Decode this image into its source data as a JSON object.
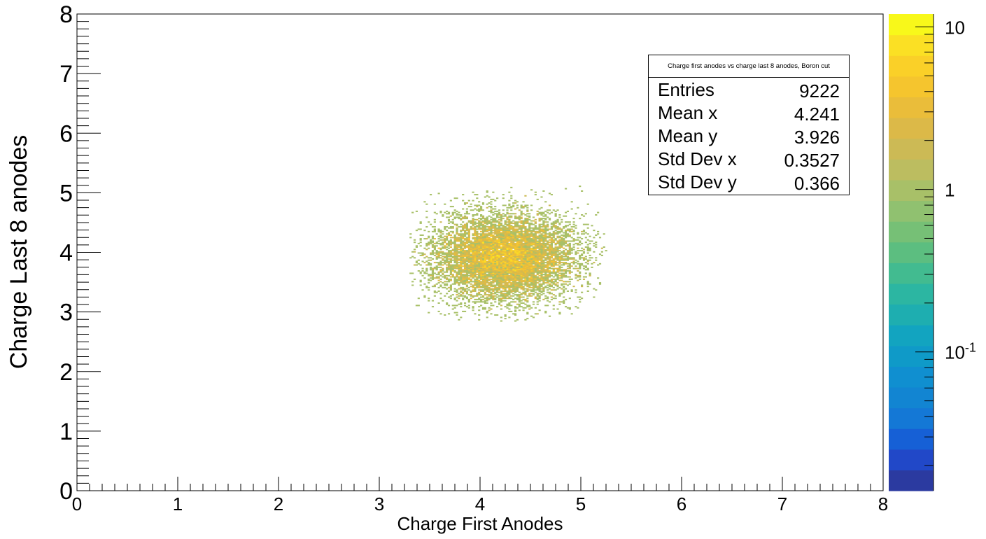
{
  "chart_data": {
    "type": "heatmap",
    "title": "",
    "xlabel": "Charge First Anodes",
    "ylabel": "Charge Last 8 anodes",
    "xlim": [
      0,
      8
    ],
    "ylim": [
      0,
      8
    ],
    "x_ticks": [
      "0",
      "1",
      "2",
      "3",
      "4",
      "5",
      "6",
      "7",
      "8"
    ],
    "y_ticks": [
      "0",
      "1",
      "2",
      "3",
      "4",
      "5",
      "6",
      "7",
      "8"
    ],
    "x_minor_divisions": 8,
    "y_minor_divisions": 8,
    "grid": false,
    "z_scale": "log",
    "z_range": [
      0.014,
      12
    ],
    "z_tick_values": [
      10,
      1,
      0.1
    ],
    "z_tick_labels": [
      "10",
      "1",
      "10^-1"
    ],
    "colorbar_colors": [
      "#2b3aa0",
      "#2148c8",
      "#1660d6",
      "#1478d6",
      "#1285d2",
      "#108fd0",
      "#0f9ac8",
      "#12a4c0",
      "#1eaeb0",
      "#2cb6a2",
      "#42bb90",
      "#5cbe80",
      "#76c076",
      "#90c170",
      "#a8c068",
      "#bcbd60",
      "#ccba55",
      "#dcb948",
      "#eabd3a",
      "#f5c52e",
      "#fad028",
      "#fbe024",
      "#f8f81a"
    ],
    "distribution": {
      "center_x": 4.241,
      "center_y": 3.926,
      "std_x": 0.3527,
      "std_y": 0.366,
      "x_extent": [
        3.3,
        5.25
      ],
      "y_extent": [
        2.85,
        5.15
      ],
      "bin_size": 0.02
    },
    "stats_box": {
      "title": "Charge first anodes vs charge last 8 anodes, Boron cut",
      "rows": [
        {
          "label": "Entries",
          "value": "9222"
        },
        {
          "label": "Mean x",
          "value": "4.241"
        },
        {
          "label": "Mean y",
          "value": "3.926"
        },
        {
          "label": "Std Dev x",
          "value": "0.3527"
        },
        {
          "label": "Std Dev y",
          "value": "0.366"
        }
      ]
    }
  }
}
